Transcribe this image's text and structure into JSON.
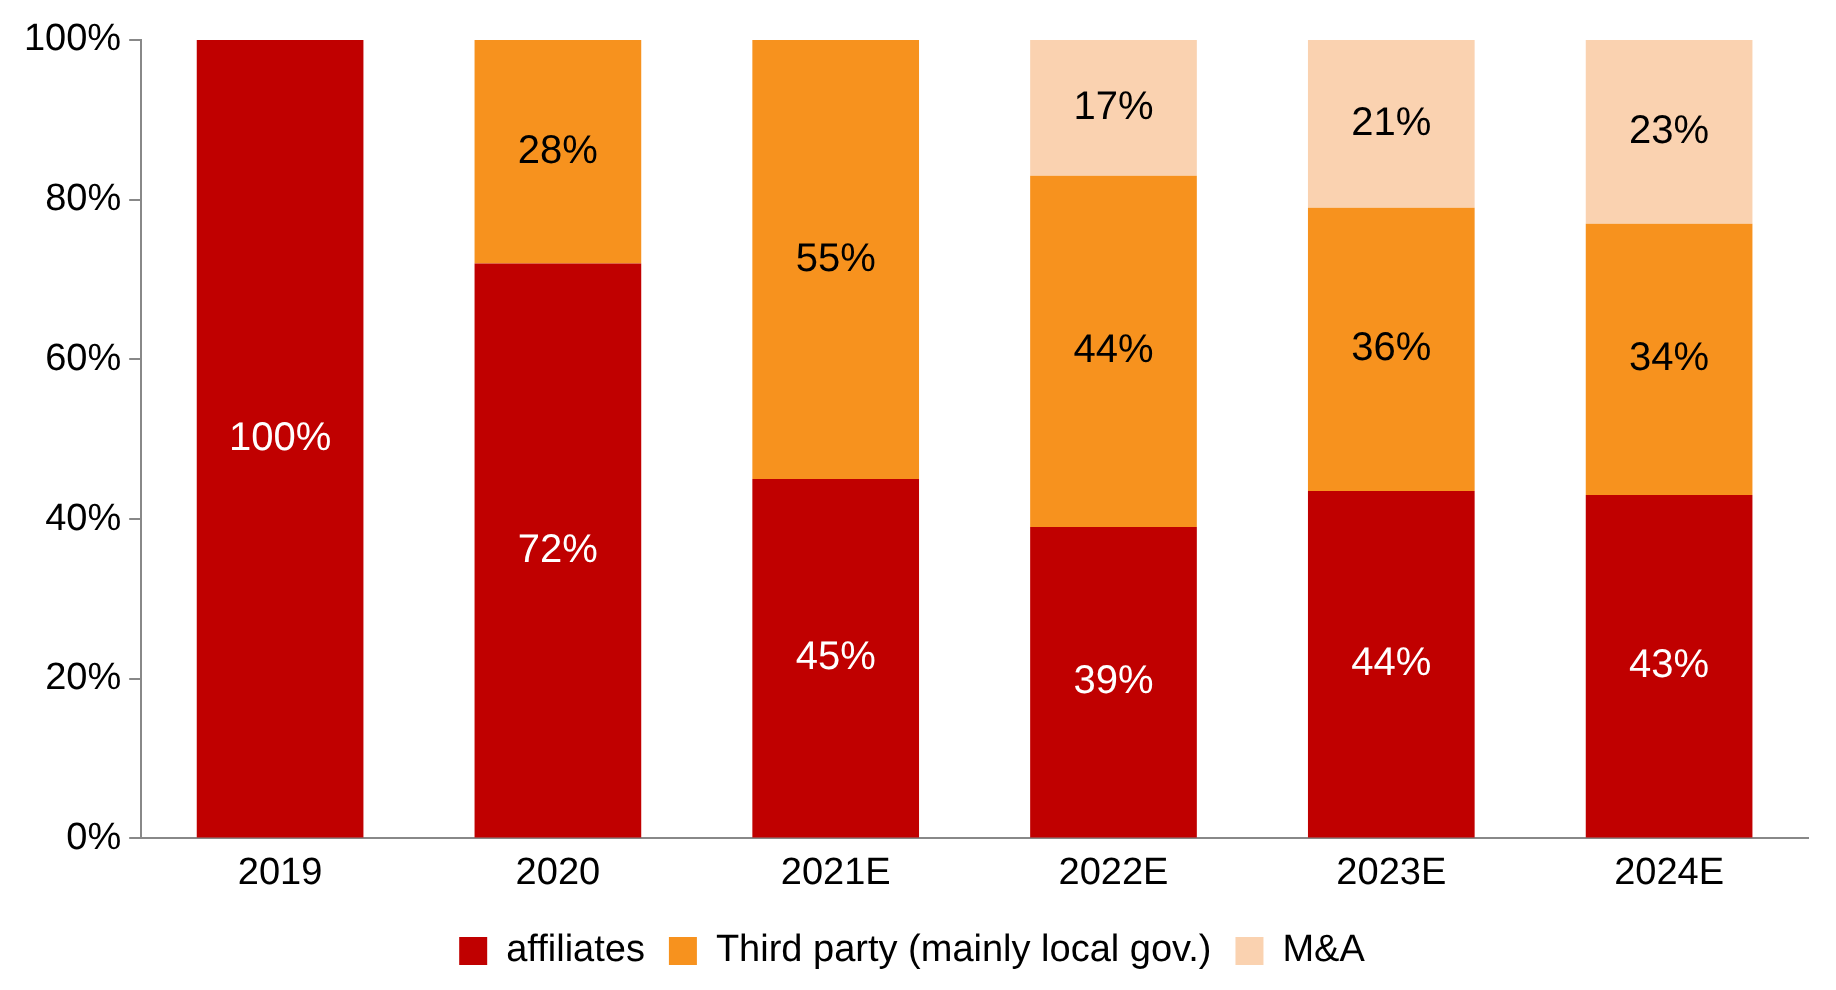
{
  "chart_data": {
    "type": "bar",
    "stacked": true,
    "categories": [
      "2019",
      "2020",
      "2021E",
      "2022E",
      "2023E",
      "2024E"
    ],
    "series": [
      {
        "name": "affiliates",
        "color": "#c00000",
        "values": [
          100,
          72,
          45,
          39,
          43.5,
          43
        ],
        "value_labels": [
          "100%",
          "72%",
          "45%",
          "39%",
          "44%",
          "43%"
        ]
      },
      {
        "name": "Third party (mainly local gov.)",
        "color": "#f7921e",
        "values": [
          null,
          28,
          55,
          44,
          35.5,
          34
        ],
        "value_labels": [
          null,
          "28%",
          "55%",
          "44%",
          "36%",
          "34%"
        ]
      },
      {
        "name": "M&A",
        "color": "#fad2b0",
        "values": [
          null,
          null,
          null,
          17,
          21,
          23
        ],
        "value_labels": [
          null,
          null,
          null,
          "17%",
          "21%",
          "23%"
        ]
      }
    ],
    "ylim": [
      0,
      100
    ],
    "yticks": [
      {
        "value": 0,
        "label": "0%"
      },
      {
        "value": 20,
        "label": "20%"
      },
      {
        "value": 40,
        "label": "40%"
      },
      {
        "value": 60,
        "label": "60%"
      },
      {
        "value": 80,
        "label": "80%"
      },
      {
        "value": 100,
        "label": "100%"
      }
    ],
    "grid": false,
    "legend": "bottom"
  }
}
